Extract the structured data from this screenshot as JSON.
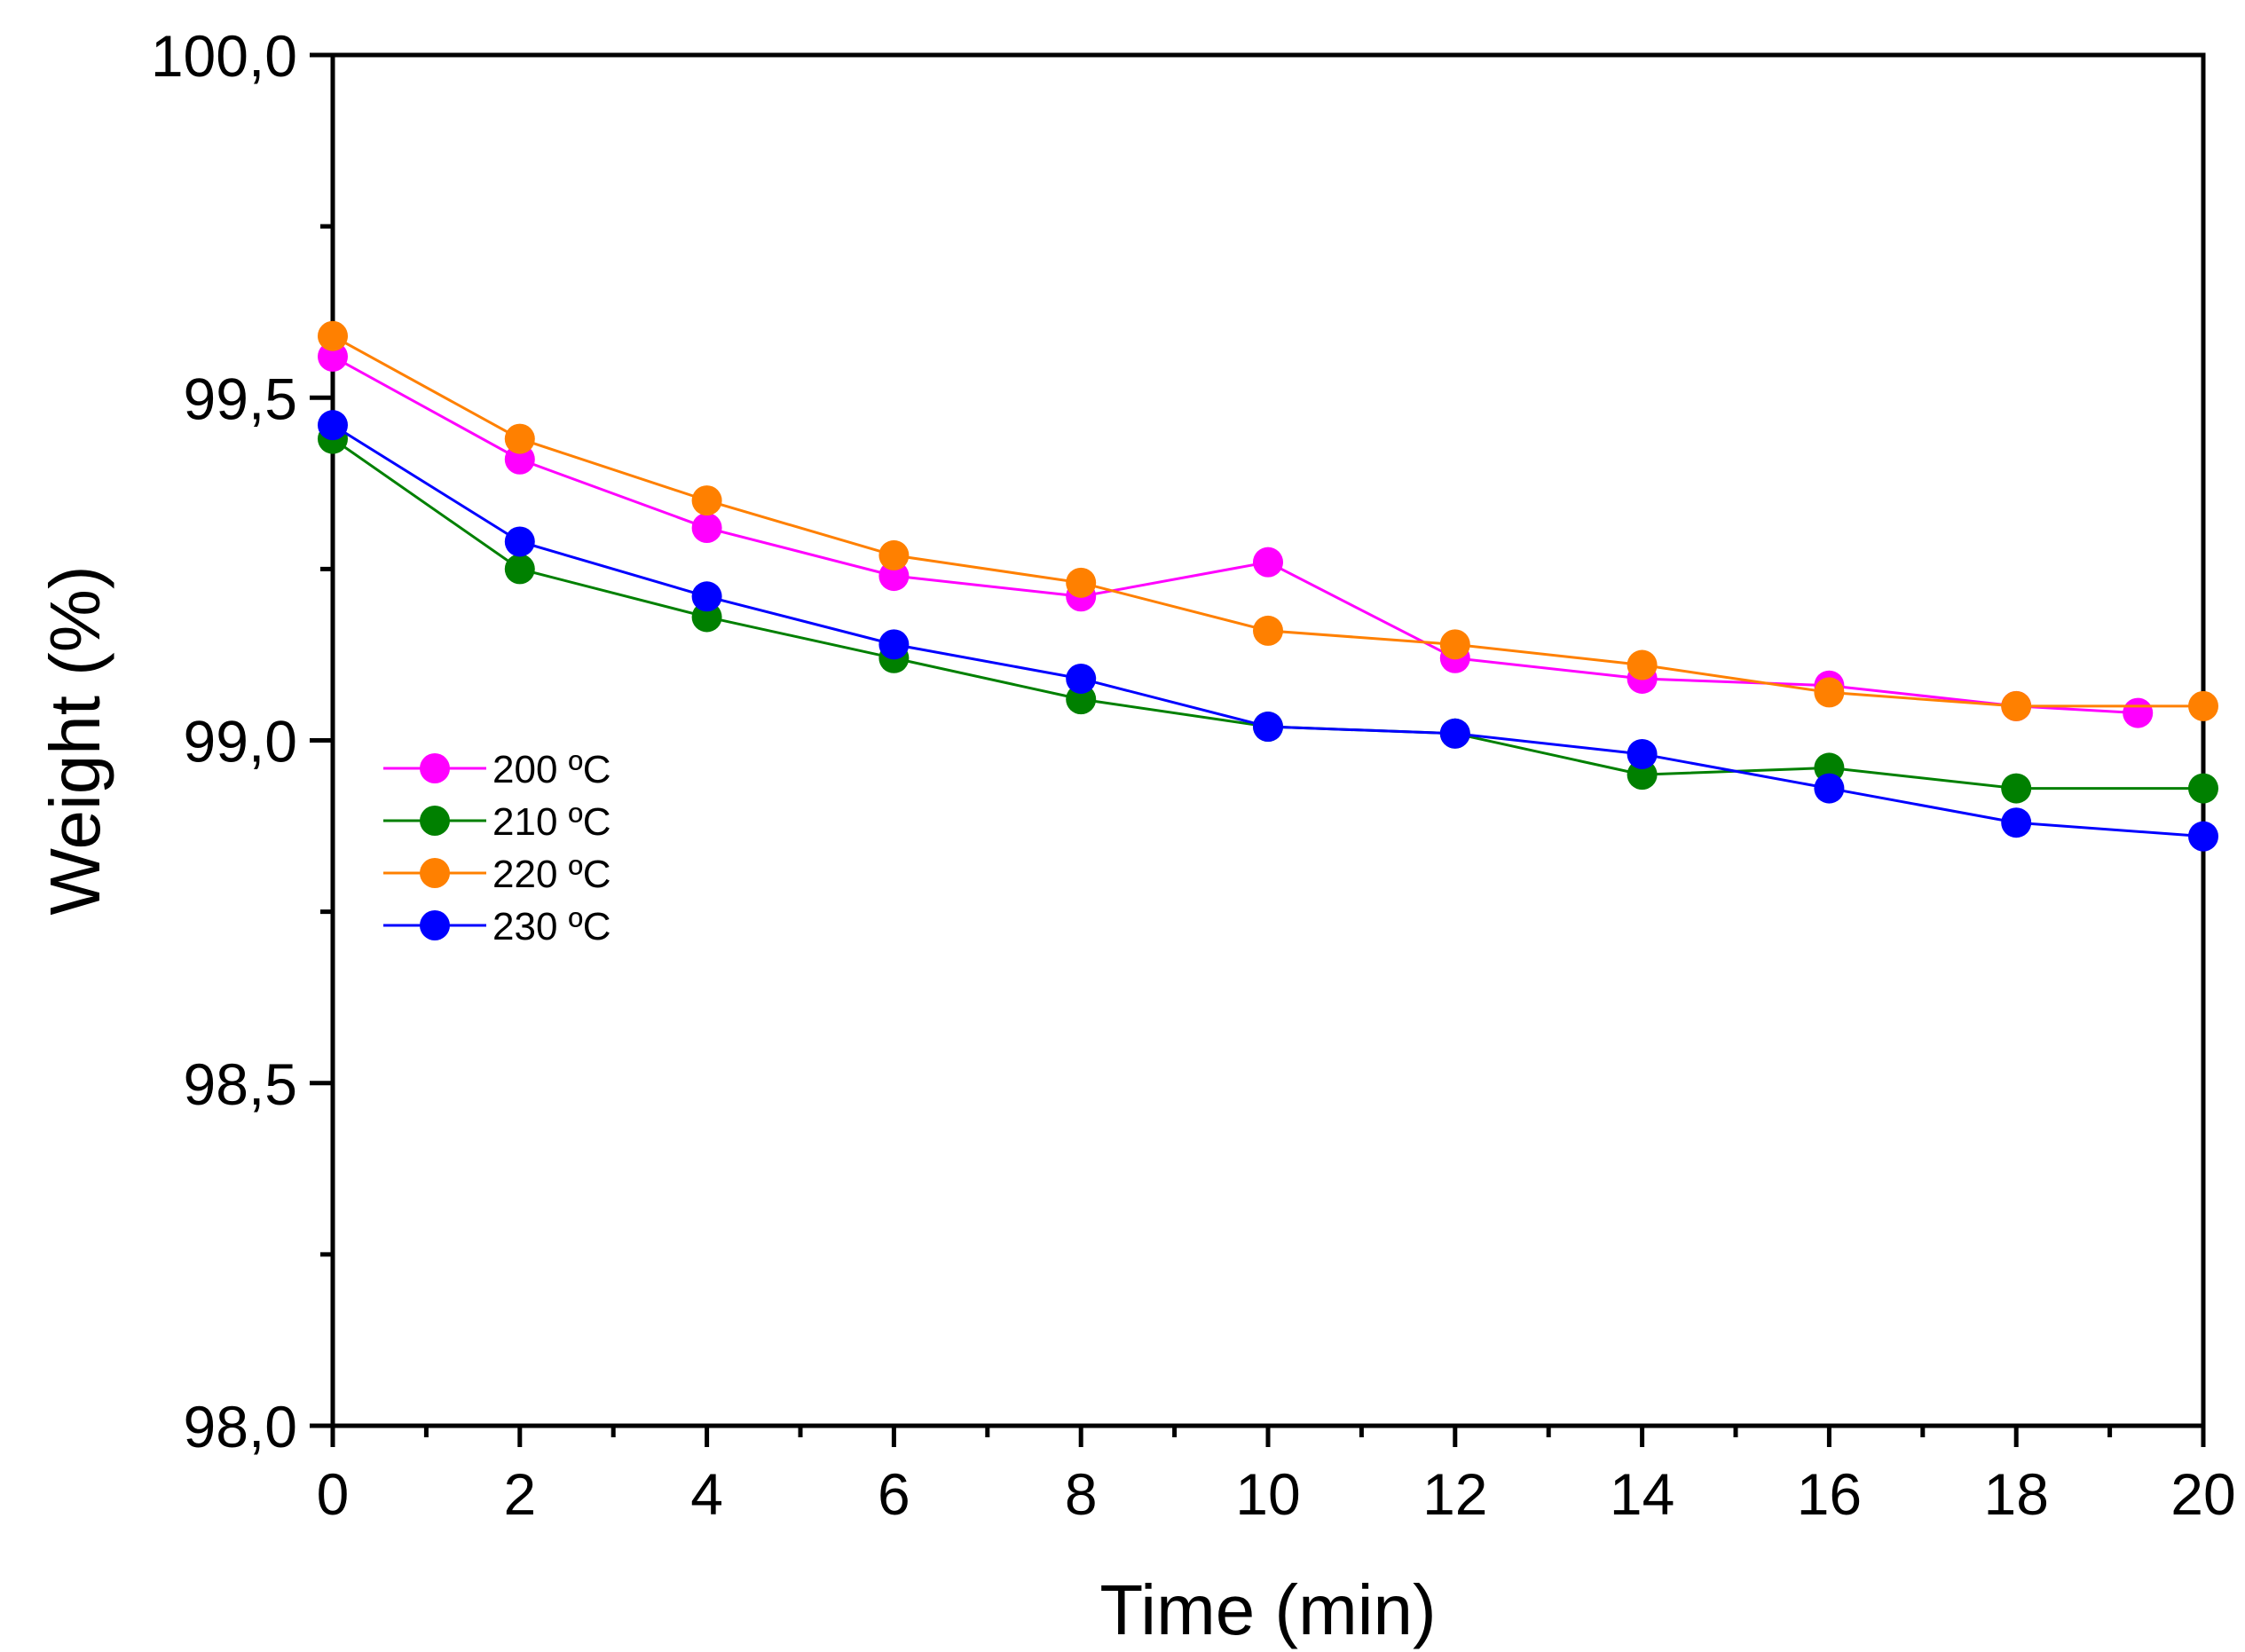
{
  "chart_data": {
    "type": "line",
    "xlabel": "Time (min)",
    "ylabel": "Weight (%)",
    "xlim": [
      0,
      20
    ],
    "ylim": [
      98.0,
      100.0
    ],
    "xticks": [
      0,
      2,
      4,
      6,
      8,
      10,
      12,
      14,
      16,
      18,
      20
    ],
    "xtick_labels": [
      "0",
      "2",
      "4",
      "6",
      "8",
      "10",
      "12",
      "14",
      "16",
      "18",
      "20"
    ],
    "yticks": [
      98.0,
      98.5,
      99.0,
      99.5,
      100.0
    ],
    "ytick_labels": [
      "98,0",
      "98,5",
      "99,0",
      "99,5",
      "100,0"
    ],
    "y_minor_step": 0.25,
    "grid": false,
    "legend_position": "left",
    "series": [
      {
        "name": "200 ºC",
        "color": "#ff00ff",
        "x": [
          0,
          2,
          4,
          6,
          8,
          10,
          12,
          14,
          16,
          18,
          19.3
        ],
        "y": [
          99.56,
          99.41,
          99.31,
          99.24,
          99.21,
          99.26,
          99.12,
          99.09,
          99.08,
          99.05,
          99.04
        ]
      },
      {
        "name": "210 ºC",
        "color": "#008000",
        "x": [
          0,
          2,
          4,
          6,
          8,
          10,
          12,
          14,
          16,
          18,
          20
        ],
        "y": [
          99.44,
          99.25,
          99.18,
          99.12,
          99.06,
          99.02,
          99.01,
          98.95,
          98.96,
          98.93,
          98.93
        ]
      },
      {
        "name": "220 ºC",
        "color": "#ff8000",
        "x": [
          0,
          2,
          4,
          6,
          8,
          10,
          12,
          14,
          16,
          18,
          20
        ],
        "y": [
          99.59,
          99.44,
          99.35,
          99.27,
          99.23,
          99.16,
          99.14,
          99.11,
          99.07,
          99.05,
          99.05
        ]
      },
      {
        "name": "230 ºC",
        "color": "#0000ff",
        "x": [
          0,
          2,
          4,
          6,
          8,
          10,
          12,
          14,
          16,
          18,
          20
        ],
        "y": [
          99.46,
          99.29,
          99.21,
          99.14,
          99.09,
          99.02,
          99.01,
          98.98,
          98.93,
          98.88,
          98.86
        ]
      }
    ]
  }
}
